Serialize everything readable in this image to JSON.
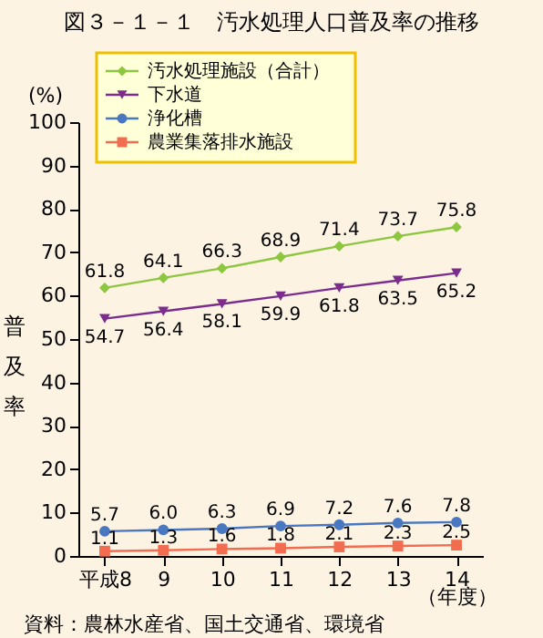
{
  "chart_data": {
    "type": "line",
    "title": "図３－１－１　汚水処理人口普及率の推移",
    "xlabel": "（年度）",
    "ylabel": "普及率",
    "categories": [
      "平成8",
      "9",
      "10",
      "11",
      "12",
      "13",
      "14"
    ],
    "series": [
      {
        "name": "汚水処理施設（合計）",
        "color": "#8dc63f",
        "marker": "diamond",
        "values": [
          61.8,
          64.1,
          66.3,
          68.9,
          71.4,
          73.7,
          75.8
        ],
        "value_labels": [
          "61.8",
          "64.1",
          "66.3",
          "68.9",
          "71.4",
          "73.7",
          "75.8"
        ]
      },
      {
        "name": "下水道",
        "color": "#7b2d8e",
        "marker": "triangle-down",
        "values": [
          54.7,
          56.4,
          58.1,
          59.9,
          61.8,
          63.5,
          65.2
        ],
        "value_labels": [
          "54.7",
          "56.4",
          "58.1",
          "59.9",
          "61.8",
          "63.5",
          "65.2"
        ]
      },
      {
        "name": "浄化槽",
        "color": "#4a78c0",
        "marker": "circle",
        "values": [
          5.7,
          6.0,
          6.3,
          6.9,
          7.2,
          7.6,
          7.8
        ],
        "value_labels": [
          "5.7",
          "6.0",
          "6.3",
          "6.9",
          "7.2",
          "7.6",
          "7.8"
        ]
      },
      {
        "name": "農業集落排水施設",
        "color": "#f26c4f",
        "marker": "square",
        "values": [
          1.1,
          1.3,
          1.6,
          1.8,
          2.1,
          2.3,
          2.5
        ],
        "value_labels": [
          "1.1",
          "1.3",
          "1.6",
          "1.8",
          "2.1",
          "2.3",
          "2.5"
        ]
      }
    ],
    "ylim": [
      0,
      100
    ],
    "yticks": [
      0,
      10,
      20,
      30,
      40,
      50,
      60,
      70,
      80,
      90,
      100
    ],
    "grid": false,
    "data_labels": true,
    "legend": "top left",
    "annotations": [
      "(%)",
      "資料：農林水産省、国土交通省、環境省"
    ]
  }
}
